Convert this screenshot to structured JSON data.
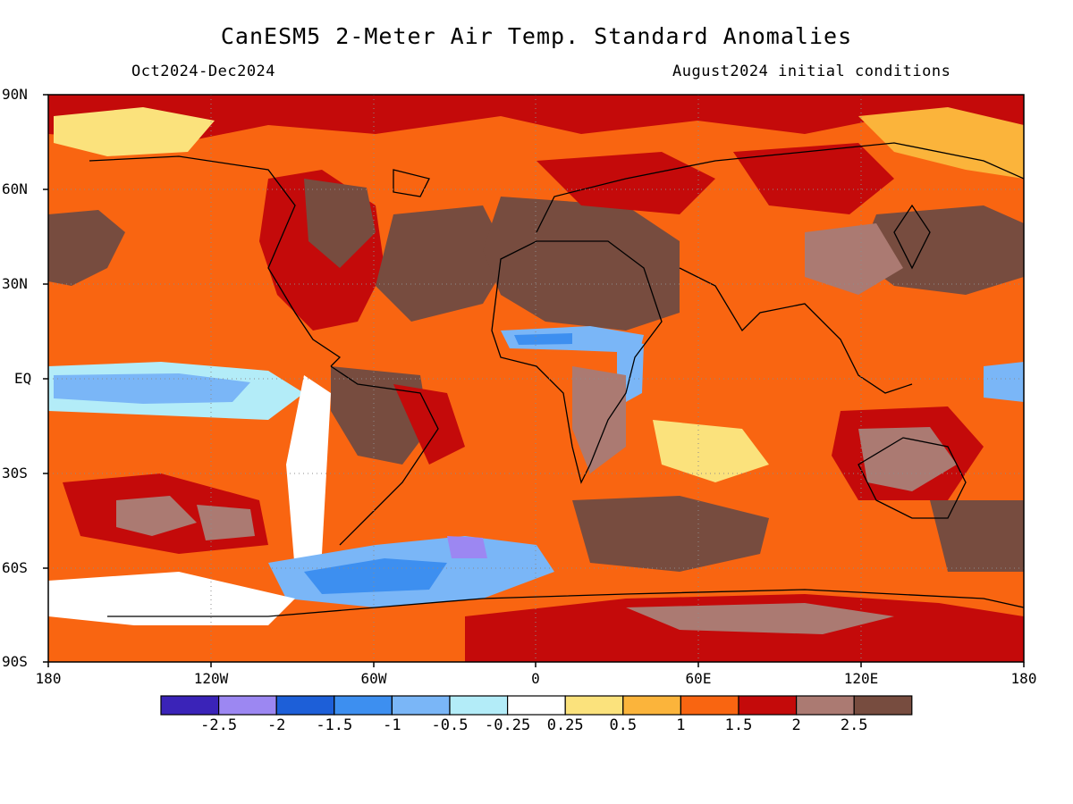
{
  "title": "CanESM5 2-Meter Air Temp. Standard Anomalies",
  "subtitle_left": "Oct2024-Dec2024",
  "subtitle_right": "August2024 initial conditions",
  "lat_labels": [
    "90N",
    "60N",
    "30N",
    "EQ",
    "30S",
    "60S",
    "90S"
  ],
  "lon_labels": [
    "180",
    "120W",
    "60W",
    "0",
    "60E",
    "120E",
    "180"
  ],
  "colorbar": {
    "colors": [
      "#3a23b8",
      "#9c87f2",
      "#1d5fd8",
      "#3d8ff0",
      "#7ab6f7",
      "#b3ecf8",
      "#ffffff",
      "#fbe27c",
      "#fbb43b",
      "#f96511",
      "#c40a0a",
      "#ab7a72",
      "#774c3f"
    ],
    "labels": [
      "-2.5",
      "-2",
      "-1.5",
      "-1",
      "-0.5",
      "-0.25",
      "0.25",
      "0.5",
      "1",
      "1.5",
      "2",
      "2.5"
    ]
  }
}
